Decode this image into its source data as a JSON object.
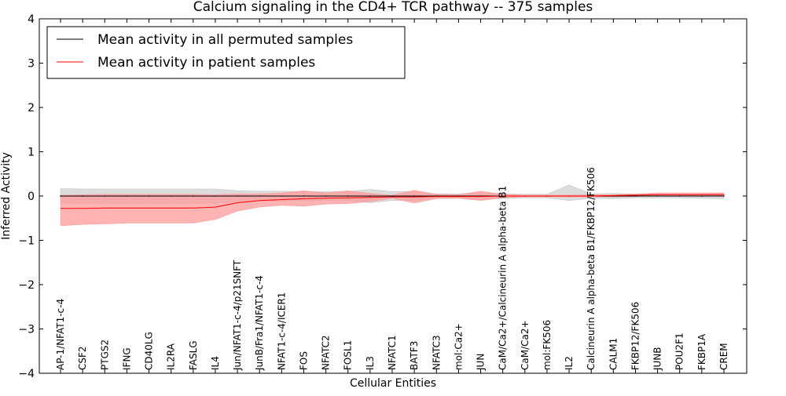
{
  "chart_data": {
    "type": "line",
    "title": "Calcium signaling in the CD4+ TCR pathway -- 375 samples",
    "xlabel": "Cellular Entities",
    "ylabel": "Inferred Activity",
    "ylim": [
      -4,
      4
    ],
    "yticks": [
      -4,
      -3,
      -2,
      -1,
      0,
      1,
      2,
      3,
      4
    ],
    "ytick_labels": [
      "−4",
      "−3",
      "−2",
      "−1",
      "0",
      "1",
      "2",
      "3",
      "4"
    ],
    "legend_position": "top-left",
    "categories": [
      "AP-1/NFAT1-c-4",
      "CSF2",
      "PTGS2",
      "IFNG",
      "CD40LG",
      "IL2RA",
      "FASLG",
      "IL4",
      "Jun/NFAT1-c-4/p21SNFT",
      "JunB/Fra1/NFAT1-c-4",
      "NFAT1-c-4/ICER1",
      "FOS",
      "NFATC2",
      "FOSL1",
      "IL3",
      "NFATC1",
      "BATF3",
      "NFATC3",
      "mol:Ca2+",
      "JUN",
      "CaM/Ca2+/Calcineurin A alpha-beta B1",
      "CaM/Ca2+",
      "mol:FK506",
      "IL2",
      "Calcineurin A alpha-beta B1/FKBP12/FK506",
      "CALM1",
      "FKBP12/FK506",
      "JUNB",
      "POU2F1",
      "FKBP1A",
      "CREM"
    ],
    "series": [
      {
        "name": "Mean activity in all permuted samples",
        "color": "#000000",
        "band_color": "#bfbfbf",
        "values": [
          0.0,
          0.0,
          0.0,
          0.0,
          0.0,
          0.0,
          0.0,
          0.0,
          0.0,
          0.0,
          0.0,
          0.0,
          0.0,
          0.0,
          0.0,
          0.0,
          0.0,
          0.0,
          0.0,
          0.0,
          0.0,
          0.0,
          0.0,
          0.0,
          0.0,
          0.0,
          0.0,
          0.0,
          0.0,
          0.0,
          0.0
        ],
        "lower": [
          -0.17,
          -0.16,
          -0.16,
          -0.16,
          -0.16,
          -0.16,
          -0.16,
          -0.16,
          -0.12,
          -0.11,
          -0.11,
          -0.1,
          -0.1,
          -0.1,
          -0.15,
          -0.1,
          -0.1,
          -0.05,
          -0.05,
          -0.08,
          -0.05,
          -0.04,
          -0.04,
          -0.1,
          -0.05,
          -0.06,
          -0.04,
          -0.04,
          -0.04,
          -0.05,
          -0.06
        ],
        "upper": [
          0.17,
          0.16,
          0.16,
          0.16,
          0.16,
          0.16,
          0.16,
          0.16,
          0.12,
          0.11,
          0.11,
          0.1,
          0.1,
          0.1,
          0.15,
          0.1,
          0.1,
          0.05,
          0.05,
          0.08,
          0.05,
          0.04,
          0.04,
          0.25,
          0.05,
          0.06,
          0.04,
          0.04,
          0.04,
          0.05,
          0.06
        ]
      },
      {
        "name": "Mean activity in patient samples",
        "color": "#ff0000",
        "band_color": "#ff9999",
        "values": [
          -0.28,
          -0.28,
          -0.27,
          -0.27,
          -0.27,
          -0.27,
          -0.27,
          -0.25,
          -0.15,
          -0.1,
          -0.08,
          -0.06,
          -0.05,
          -0.04,
          -0.03,
          -0.02,
          -0.02,
          -0.01,
          -0.01,
          -0.01,
          0.0,
          0.0,
          0.0,
          0.0,
          0.0,
          0.01,
          0.02,
          0.03,
          0.03,
          0.03,
          0.03
        ],
        "lower": [
          -0.67,
          -0.64,
          -0.63,
          -0.61,
          -0.61,
          -0.61,
          -0.61,
          -0.53,
          -0.34,
          -0.25,
          -0.21,
          -0.23,
          -0.18,
          -0.17,
          -0.13,
          -0.05,
          -0.16,
          -0.06,
          -0.05,
          -0.1,
          -0.04,
          -0.02,
          -0.02,
          -0.02,
          -0.02,
          -0.02,
          -0.01,
          0.0,
          0.0,
          0.0,
          0.0
        ],
        "upper": [
          0.02,
          0.03,
          0.04,
          0.04,
          0.04,
          0.04,
          0.04,
          0.03,
          0.05,
          0.05,
          0.07,
          0.12,
          0.07,
          0.12,
          0.06,
          0.02,
          0.13,
          0.04,
          0.03,
          0.11,
          0.04,
          0.02,
          0.02,
          0.02,
          0.03,
          0.03,
          0.05,
          0.07,
          0.07,
          0.07,
          0.07
        ]
      }
    ]
  }
}
